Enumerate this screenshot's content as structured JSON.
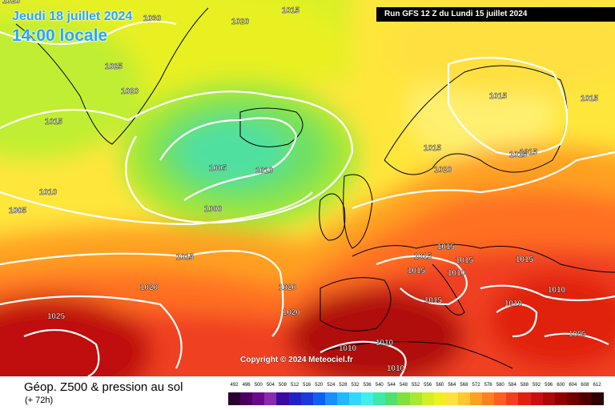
{
  "header": {
    "date": "Jeudi 18 juillet 2024",
    "time": "14:00 locale",
    "run": "Run GFS 12 Z du Lundi 15 juillet 2024"
  },
  "footer": {
    "title": "Géop. Z500 & pression au sol",
    "subtitle": "(+ 72h)",
    "copyright": "Copyright © 2024 Meteociel.fr"
  },
  "legend": {
    "values": [
      "492",
      "496",
      "500",
      "504",
      "508",
      "512",
      "516",
      "520",
      "524",
      "528",
      "532",
      "536",
      "540",
      "544",
      "548",
      "552",
      "556",
      "560",
      "564",
      "568",
      "572",
      "576",
      "580",
      "584",
      "588",
      "592",
      "596",
      "600",
      "604",
      "608",
      "612"
    ],
    "colors": [
      "#2a0030",
      "#4a0060",
      "#6a0a8a",
      "#8a2ab0",
      "#3a0aa0",
      "#2222c0",
      "#1a3ad8",
      "#1060f0",
      "#1890ff",
      "#20b8ff",
      "#30d8ff",
      "#40f0e8",
      "#40e8a8",
      "#50e070",
      "#80e040",
      "#a8e830",
      "#d0f020",
      "#f0f020",
      "#ffe040",
      "#ffc830",
      "#ffa020",
      "#ff8020",
      "#ff6020",
      "#f04020",
      "#e02010",
      "#c81010",
      "#b00808",
      "#900000",
      "#700000",
      "#500000",
      "#300000"
    ]
  },
  "isobars": [
    {
      "label": "1020"
    },
    {
      "label": "1030"
    },
    {
      "label": "1020"
    },
    {
      "label": "1015"
    },
    {
      "label": "1025"
    },
    {
      "label": "1020"
    },
    {
      "label": "1015"
    },
    {
      "label": "1010"
    },
    {
      "label": "1005"
    },
    {
      "label": "1005"
    },
    {
      "label": "1010"
    },
    {
      "label": "1000"
    },
    {
      "label": "1015"
    },
    {
      "label": "1020"
    },
    {
      "label": "1025"
    },
    {
      "label": "1020"
    },
    {
      "label": "1020"
    },
    {
      "label": "1015"
    },
    {
      "label": "1015"
    },
    {
      "label": "1015"
    },
    {
      "label": "1015"
    },
    {
      "label": "1015"
    },
    {
      "label": "1020"
    },
    {
      "label": "1015"
    },
    {
      "label": "1015"
    },
    {
      "label": "1015"
    },
    {
      "label": "1015"
    },
    {
      "label": "1015"
    },
    {
      "label": "1010"
    },
    {
      "label": "1015"
    },
    {
      "label": "1010"
    },
    {
      "label": "1010"
    },
    {
      "label": "1010"
    },
    {
      "label": "1010"
    },
    {
      "label": "1010"
    },
    {
      "label": "1005"
    }
  ]
}
